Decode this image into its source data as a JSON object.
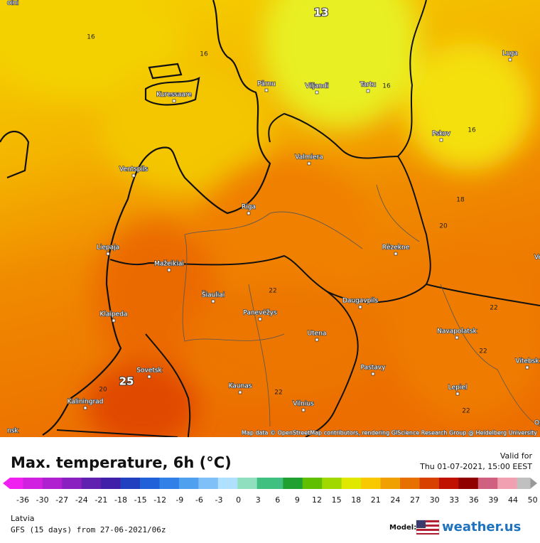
{
  "map": {
    "cities": [
      "Kuressaare",
      "Pärnu",
      "Viljandi",
      "Tartu",
      "Luga",
      "Pskov",
      "Valmiera",
      "Ventspils",
      "Riga",
      "Liepaja",
      "Rēzekne",
      "Mažeikiai",
      "Šiauliai",
      "Panevėžys",
      "Daugavpils",
      "Klaipeda",
      "Utena",
      "Navapolatsk",
      "Sovetsk",
      "Pastavy",
      "Kaunas",
      "Lepiel",
      "Kaliningrad",
      "Vilnius",
      "Vitebsk",
      "Vel",
      "Ors",
      "nsk",
      "oini"
    ],
    "contour_labels": [
      "13",
      "16",
      "16",
      "16",
      "16",
      "18",
      "20",
      "22",
      "22",
      "22",
      "25",
      "20",
      "22",
      "22"
    ],
    "attribution": "Map data © OpenStreetMap contributors, rendering GIScience Research Group @ Heidelberg University"
  },
  "legend": {
    "title": "Max. temperature, 6h (°C)",
    "valid_label": "Valid for",
    "valid_time": "Thu 01-07-2021, 15:00 EEST",
    "ticks": [
      -36,
      -30,
      -27,
      -24,
      -21,
      -18,
      -15,
      -12,
      -9,
      -6,
      -3,
      0,
      3,
      6,
      9,
      12,
      15,
      18,
      21,
      24,
      27,
      30,
      33,
      36,
      39,
      44,
      50
    ]
  },
  "footer": {
    "region": "Latvia",
    "model_run": "GFS (15 days) from 27-06-2021/06z",
    "model_label": "Model:",
    "brand": "weather.us"
  }
}
